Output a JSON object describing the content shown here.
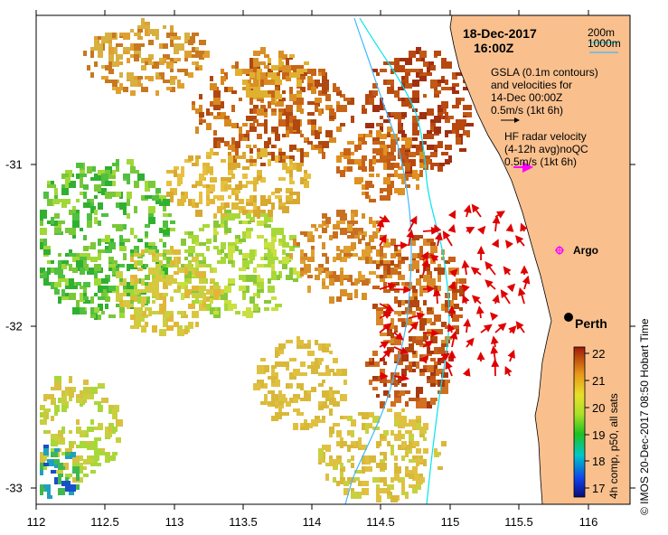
{
  "map": {
    "date": "18-Dec-2017",
    "time": "16:00Z",
    "isobath_shallow": "200m",
    "isobath_deep": "1000m",
    "gsla_line1": "GSLA (0.1m contours)",
    "gsla_line2": "and velocities for",
    "gsla_line3": "14-Dec 00:00Z",
    "gsla_scale": "0.5m/s (1kt 6h)",
    "hf_line1": "HF radar velocity",
    "hf_line2": "(4-12h avg)noQC",
    "hf_scale": "0.5m/s (1kt 6h)",
    "place_argo": "Argo",
    "place_perth": "Perth",
    "x_ticks": [
      "112",
      "112.5",
      "113",
      "113.5",
      "114",
      "114.5",
      "115",
      "115.5",
      "116"
    ],
    "y_ticks": [
      "-31",
      "-32",
      "-33"
    ],
    "colorbar_ticks": [
      "22",
      "21",
      "20",
      "19",
      "18",
      "17"
    ],
    "colorbar_label": "4h comp, p50, all sats",
    "footer": "© IMOS 20-Dec-2017 08:50 Hobart Time",
    "colors": {
      "land": "#f9c08e",
      "isobath_200": "#00e5ee",
      "isobath_1000": "#3fb8ff",
      "hf_arrow": "#e00000",
      "argo": "#ff00ff"
    }
  }
}
